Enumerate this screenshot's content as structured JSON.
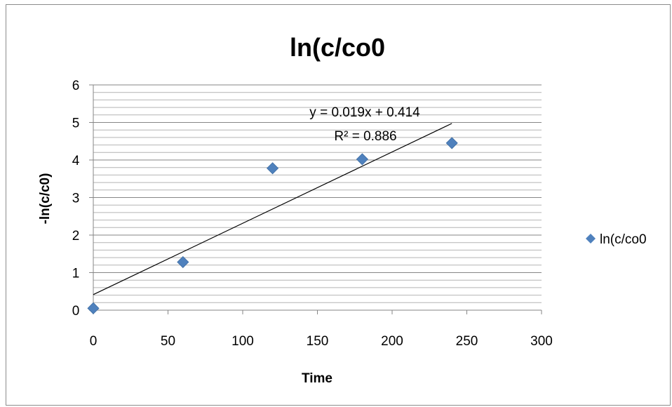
{
  "chart_data": {
    "type": "scatter",
    "title": "ln(c/co0",
    "xlabel": "Time",
    "ylabel": "-ln(c/c0)",
    "xlim": [
      0,
      300
    ],
    "ylim": [
      0,
      6
    ],
    "x_ticks": [
      "0",
      "50",
      "100",
      "150",
      "200",
      "250",
      "300"
    ],
    "y_ticks": [
      "0",
      "1",
      "2",
      "3",
      "4",
      "5",
      "6"
    ],
    "grid": "horizontal major and minor",
    "legend_position": "right",
    "series": [
      {
        "name": "ln(c/co0",
        "marker": "diamond",
        "color": "#4f81bd",
        "points": [
          {
            "x": 0,
            "y": 0.05
          },
          {
            "x": 60,
            "y": 1.28
          },
          {
            "x": 120,
            "y": 3.78
          },
          {
            "x": 180,
            "y": 4.02
          },
          {
            "x": 240,
            "y": 4.45
          }
        ]
      }
    ],
    "trendline": {
      "type": "linear",
      "slope": 0.019,
      "intercept": 0.414,
      "x_range": [
        0,
        240
      ],
      "equation_label": "y = 0.019x + 0.414",
      "r2_label": "R² = 0.886",
      "color": "#000000"
    }
  }
}
